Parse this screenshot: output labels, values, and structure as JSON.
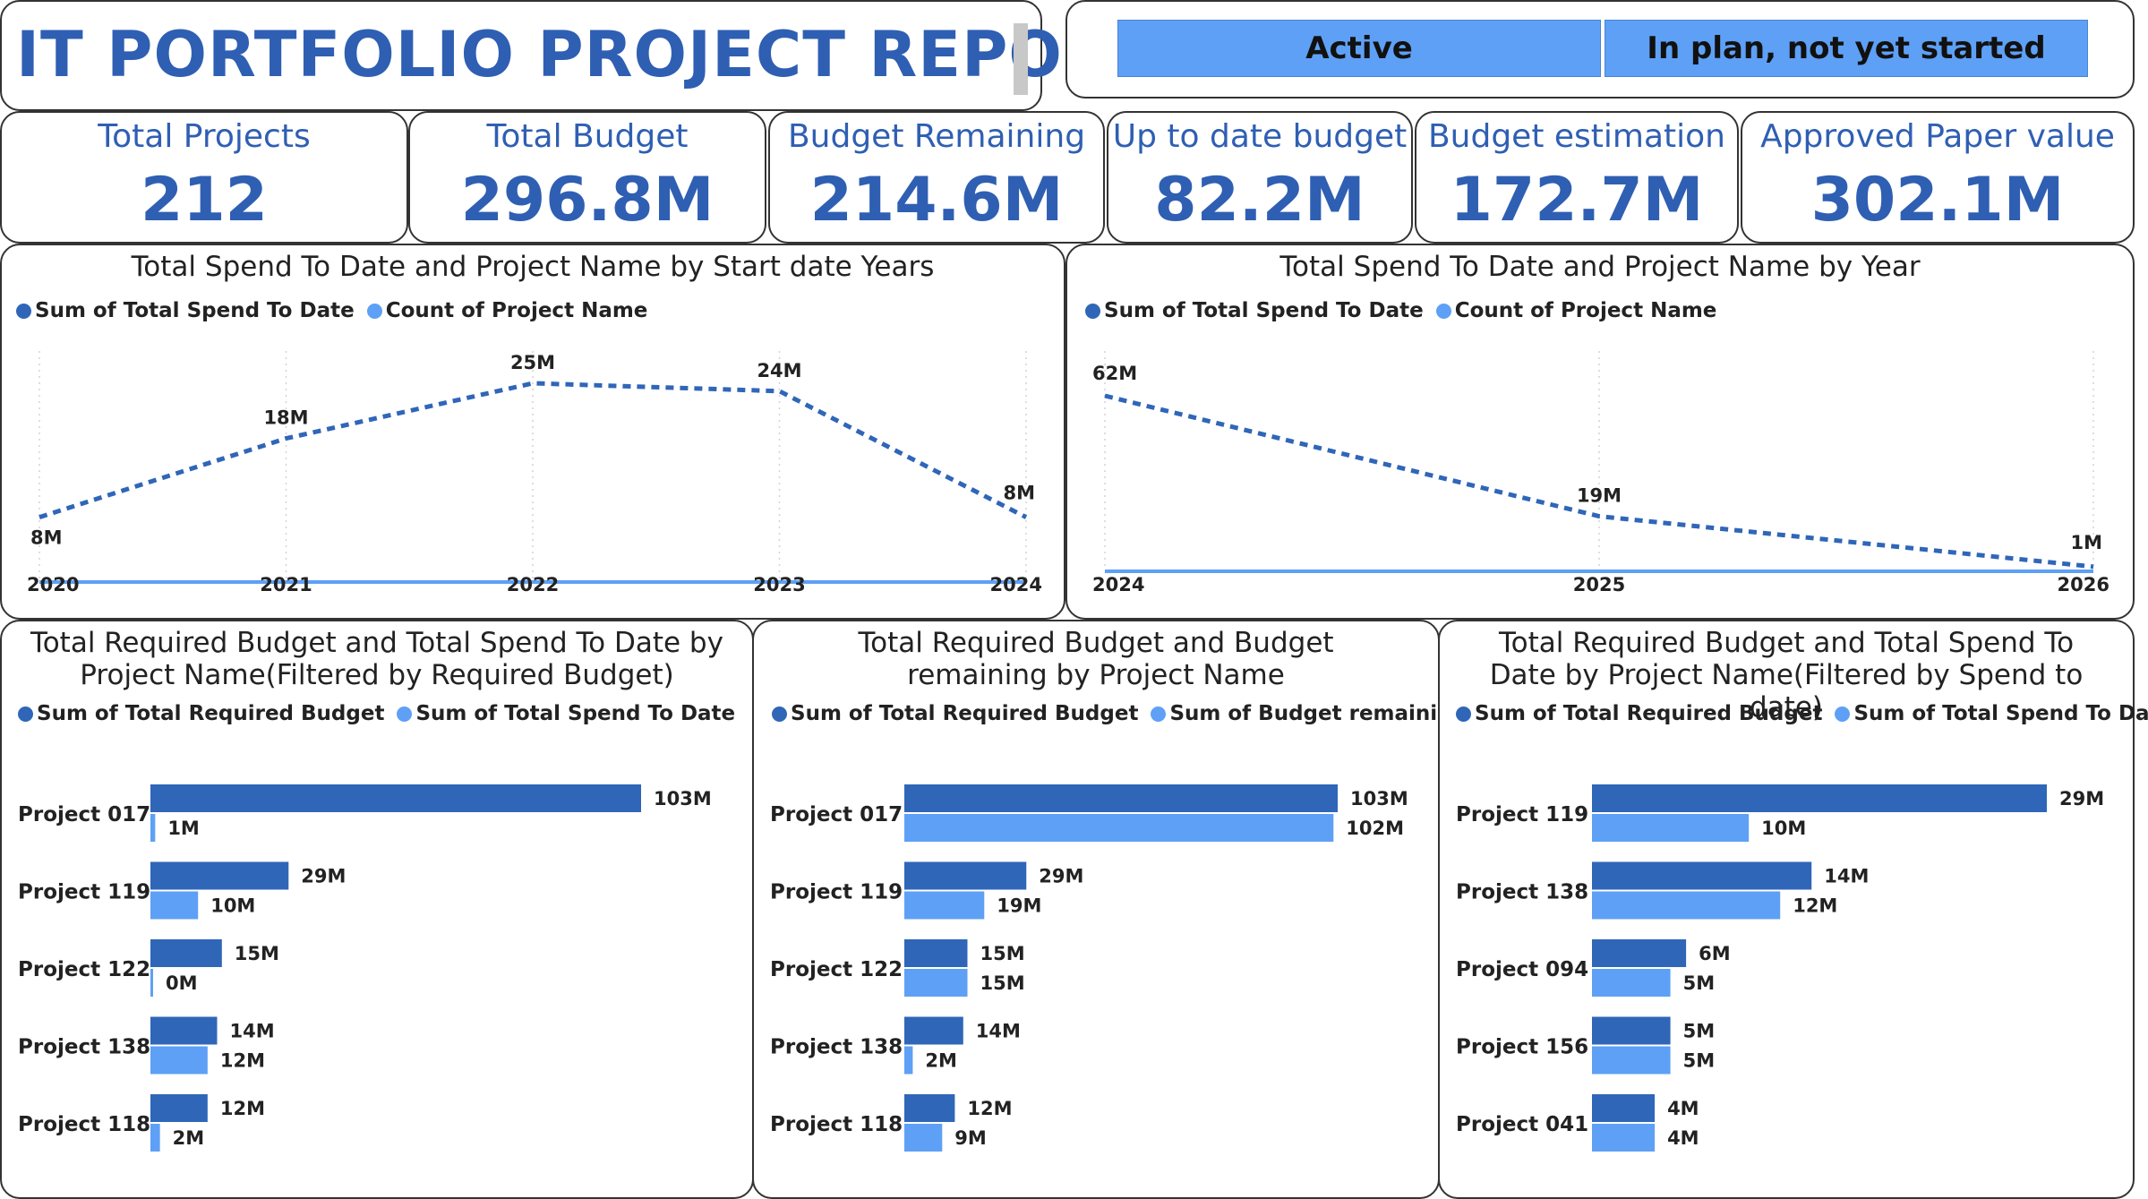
{
  "header": {
    "title": "IT  PORTFOLIO PROJECT REPORT"
  },
  "slicer": {
    "buttons": [
      "Active",
      "In plan, not yet started"
    ]
  },
  "kpis": [
    {
      "label": "Total Projects",
      "value": "212"
    },
    {
      "label": "Total Budget",
      "value": "296.8M"
    },
    {
      "label": "Budget Remaining",
      "value": "214.6M"
    },
    {
      "label": "Up to date budget",
      "value": "82.2M"
    },
    {
      "label": "Budget estimation",
      "value": "172.7M"
    },
    {
      "label": "Approved Paper value",
      "value": "302.1M"
    }
  ],
  "colors": {
    "primary": "#2f66b8",
    "secondary": "#5ea0f5",
    "accent": "#2f5fb3"
  },
  "chart_data": [
    {
      "type": "line",
      "title": "Total Spend To Date and Project Name by Start date Years",
      "x": [
        "2020",
        "2021",
        "2022",
        "2023",
        "2024"
      ],
      "series": [
        {
          "name": "Sum of Total Spend To Date",
          "values": [
            8,
            18,
            25,
            24,
            8
          ],
          "labels": [
            "8M",
            "18M",
            "25M",
            "24M",
            "8M"
          ],
          "style": "dashed"
        },
        {
          "name": "Count of Project Name",
          "values": [
            0,
            0,
            0,
            0,
            0
          ],
          "style": "solid"
        }
      ],
      "ylim": [
        0,
        25
      ]
    },
    {
      "type": "line",
      "title": "Total Spend To Date and Project Name by Year",
      "x": [
        "2024",
        "2025",
        "2026"
      ],
      "series": [
        {
          "name": "Sum of Total Spend To Date",
          "values": [
            62,
            19,
            1
          ],
          "labels": [
            "62M",
            "19M",
            "1M"
          ],
          "style": "dashed"
        },
        {
          "name": "Count of Project Name",
          "values": [
            0,
            0,
            0
          ],
          "style": "solid"
        }
      ],
      "ylim": [
        0,
        62
      ]
    },
    {
      "type": "bar",
      "title": "Total Required Budget and Total Spend To Date by Project Name(Filtered by Required Budget)",
      "categories": [
        "Project 017",
        "Project 119",
        "Project 122",
        "Project 138",
        "Project 118"
      ],
      "series": [
        {
          "name": "Sum of Total Required Budget",
          "values": [
            103,
            29,
            15,
            14,
            12
          ],
          "labels": [
            "103M",
            "29M",
            "15M",
            "14M",
            "12M"
          ]
        },
        {
          "name": "Sum of Total Spend To Date",
          "values": [
            1,
            10,
            0.4,
            12,
            2
          ],
          "labels": [
            "1M",
            "10M",
            "0M",
            "12M",
            "2M"
          ]
        }
      ],
      "xlim": [
        0,
        103
      ]
    },
    {
      "type": "bar",
      "title": "Total Required Budget and Budget remaining by Project Name",
      "categories": [
        "Project 017",
        "Project 119",
        "Project 122",
        "Project 138",
        "Project 118"
      ],
      "series": [
        {
          "name": "Sum of Total Required Budget",
          "values": [
            103,
            29,
            15,
            14,
            12
          ],
          "labels": [
            "103M",
            "29M",
            "15M",
            "14M",
            "12M"
          ]
        },
        {
          "name": "Sum of Budget remaining",
          "values": [
            102,
            19,
            15,
            2,
            9
          ],
          "labels": [
            "102M",
            "19M",
            "15M",
            "2M",
            "9M"
          ]
        }
      ],
      "xlim": [
        0,
        103
      ]
    },
    {
      "type": "bar",
      "title": "Total Required Budget and Total Spend To Date by Project Name(Filtered by Spend to date)",
      "categories": [
        "Project 119",
        "Project 138",
        "Project 094",
        "Project 156",
        "Project 041"
      ],
      "series": [
        {
          "name": "Sum of Total Required Budget",
          "values": [
            29,
            14,
            6,
            5,
            4
          ],
          "labels": [
            "29M",
            "14M",
            "6M",
            "5M",
            "4M"
          ]
        },
        {
          "name": "Sum of Total Spend To Date",
          "values": [
            10,
            12,
            5,
            5,
            4
          ],
          "labels": [
            "10M",
            "12M",
            "5M",
            "5M",
            "4M"
          ]
        }
      ],
      "xlim": [
        0,
        29
      ]
    }
  ]
}
